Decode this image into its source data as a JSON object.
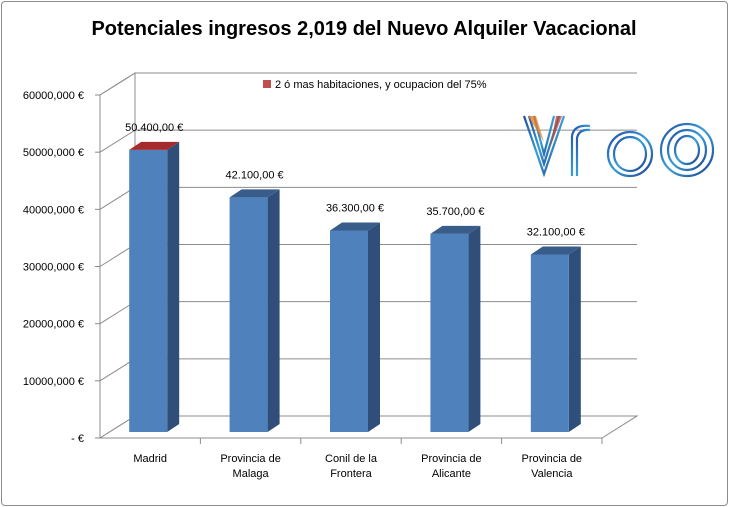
{
  "chart_data": {
    "type": "bar",
    "title": "Potenciales ingresos 2,019 del Nuevo Alquiler Vacacional",
    "categories": [
      [
        "Madrid"
      ],
      [
        "Provincia de",
        "Malaga"
      ],
      [
        "Conil de la",
        "Frontera"
      ],
      [
        "Provincia de",
        "Alicante"
      ],
      [
        "Provincia de",
        "Valencia"
      ]
    ],
    "series": [
      {
        "name": "2 ó mas habitaciones, y ocupacion del 75%",
        "values": [
          50400,
          42100,
          36300,
          35700,
          32100
        ],
        "data_labels": [
          "50.400,00 €",
          "42.100,00 €",
          "36.300,00 €",
          "35.700,00 €",
          "32.100,00 €"
        ]
      }
    ],
    "ylim": [
      0,
      60000
    ],
    "yticks": [
      {
        "value": 0,
        "label": "-  €"
      },
      {
        "value": 10000,
        "label": "10000,000 €"
      },
      {
        "value": 20000,
        "label": "20000,000 €"
      },
      {
        "value": 30000,
        "label": "30000,000 €"
      },
      {
        "value": 40000,
        "label": "40000,000 €"
      },
      {
        "value": 50000,
        "label": "50000,000 €"
      },
      {
        "value": 60000,
        "label": "60000,000 €"
      }
    ],
    "grid": true,
    "legend_position": "top",
    "colors": {
      "bar_front": "#4f81bd",
      "bar_side": "#2f4f7a",
      "bar_top": "#385d8a",
      "highlight_top": "#a52a2a",
      "legend_swatch": "#c0504d"
    }
  },
  "logo": {
    "text": "vrbo",
    "icon": "vrbo-logo"
  }
}
